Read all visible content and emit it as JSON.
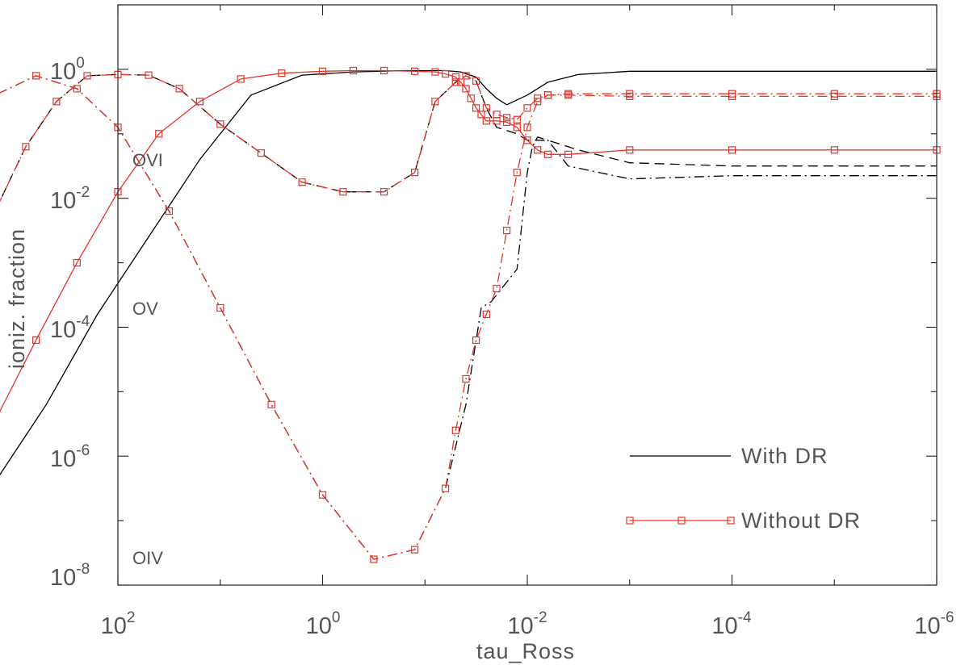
{
  "chart_data": {
    "type": "line",
    "xlabel": "tau_Ross",
    "ylabel": "ioniz. fraction",
    "x_scale": "log",
    "y_scale": "log",
    "xlim": [
      100,
      1e-06
    ],
    "ylim": [
      1e-08,
      10
    ],
    "x_ticks": [
      {
        "base": "10",
        "exp": "2",
        "value": 100
      },
      {
        "base": "10",
        "exp": "0",
        "value": 1
      },
      {
        "base": "10",
        "exp": "-2",
        "value": 0.01
      },
      {
        "base": "10",
        "exp": "-4",
        "value": 0.0001
      },
      {
        "base": "10",
        "exp": "-6",
        "value": 1e-06
      }
    ],
    "y_ticks": [
      {
        "base": "10",
        "exp": "0",
        "value": 1
      },
      {
        "base": "10",
        "exp": "-2",
        "value": 0.01
      },
      {
        "base": "10",
        "exp": "-4",
        "value": 0.0001
      },
      {
        "base": "10",
        "exp": "-6",
        "value": 1e-06
      },
      {
        "base": "10",
        "exp": "-8",
        "value": 1e-08
      }
    ],
    "ion_labels": [
      "OVI",
      "OV",
      "OIV"
    ],
    "legend": [
      {
        "label": "With DR",
        "style": "solid",
        "color": "#000000"
      },
      {
        "label": "Without DR",
        "style": "solid-squares",
        "color": "#e8332a"
      }
    ],
    "series": [
      {
        "name": "OVI With DR",
        "ion": "OVI",
        "case": "With DR",
        "dash": "solid",
        "color": "#000000",
        "x": [
          3.548,
          3.2,
          2.7,
          2.2,
          1.7,
          1.2,
          0.7,
          0.2,
          -0.3,
          -0.8,
          -1.2,
          -1.35,
          -1.5,
          -1.6,
          -1.7,
          -1.8,
          -2.0,
          -2.2,
          -2.5,
          -3.0,
          -4.0,
          -5.0,
          -6.0
        ],
        "y": [
          -7.2,
          -6.4,
          -5.2,
          -3.8,
          -2.6,
          -1.4,
          -0.4,
          -0.09,
          -0.04,
          -0.02,
          -0.02,
          -0.04,
          -0.12,
          -0.3,
          -0.45,
          -0.55,
          -0.4,
          -0.2,
          -0.08,
          -0.03,
          -0.03,
          -0.03,
          -0.03
        ]
      },
      {
        "name": "OVI Without DR",
        "ion": "OVI",
        "case": "Without DR",
        "dash": "solid",
        "color": "#e8332a",
        "markers": true,
        "x": [
          3.548,
          3.2,
          2.8,
          2.4,
          2.0,
          1.6,
          1.2,
          0.8,
          0.4,
          0.0,
          -0.3,
          -0.6,
          -0.9,
          -1.1,
          -1.2,
          -1.3,
          -1.35,
          -1.4,
          -1.45,
          -1.5,
          -1.55,
          -1.6,
          -1.7,
          -1.8,
          -1.9,
          -2.0,
          -2.1,
          -2.2,
          -2.4,
          -3.0,
          -4.0,
          -5.0,
          -6.0
        ],
        "y": [
          -7.2,
          -5.45,
          -4.2,
          -3.0,
          -1.9,
          -1.0,
          -0.5,
          -0.15,
          -0.06,
          -0.03,
          -0.02,
          -0.02,
          -0.03,
          -0.04,
          -0.07,
          -0.12,
          -0.2,
          -0.3,
          -0.45,
          -0.6,
          -0.7,
          -0.8,
          -0.8,
          -0.82,
          -0.9,
          -1.1,
          -1.25,
          -1.32,
          -1.32,
          -1.25,
          -1.25,
          -1.25,
          -1.25
        ]
      },
      {
        "name": "OV With DR",
        "ion": "OV",
        "case": "With DR",
        "dash": "dashed",
        "color": "#000000",
        "x": [
          3.548,
          3.2,
          2.9,
          2.6,
          2.3,
          2.0,
          1.7,
          1.4,
          1.0,
          0.6,
          0.2,
          -0.2,
          -0.6,
          -0.9,
          -1.1,
          -1.3,
          -1.4,
          -1.5,
          -1.6,
          -1.7,
          -1.8,
          -1.9,
          -2.0,
          -2.2,
          -2.5,
          -3.0,
          -4.0,
          -5.0,
          -6.0
        ],
        "y": [
          -3.5,
          -2.2,
          -1.2,
          -0.5,
          -0.1,
          -0.08,
          -0.09,
          -0.3,
          -0.85,
          -1.3,
          -1.75,
          -1.9,
          -1.9,
          -1.6,
          -0.5,
          -0.2,
          -0.1,
          -0.18,
          -0.6,
          -0.9,
          -0.95,
          -1.0,
          -1.1,
          -1.1,
          -1.25,
          -1.45,
          -1.5,
          -1.5,
          -1.5
        ]
      },
      {
        "name": "OV Without DR",
        "ion": "OV",
        "case": "Without DR",
        "dash": "dashdot",
        "color": "#e8332a",
        "markers": true,
        "x": [
          3.548,
          3.2,
          2.9,
          2.6,
          2.3,
          2.0,
          1.7,
          1.4,
          1.0,
          0.6,
          0.2,
          -0.2,
          -0.6,
          -0.9,
          -1.1,
          -1.3,
          -1.4,
          -1.5,
          -1.6,
          -1.7,
          -1.8,
          -1.9,
          -2.0,
          -2.1,
          -2.2,
          -2.4,
          -3.0,
          -4.0,
          -5.0,
          -6.0
        ],
        "y": [
          -3.5,
          -2.2,
          -1.2,
          -0.5,
          -0.1,
          -0.08,
          -0.09,
          -0.3,
          -0.85,
          -1.3,
          -1.75,
          -1.9,
          -1.9,
          -1.6,
          -0.5,
          -0.2,
          -0.1,
          -0.18,
          -0.6,
          -0.7,
          -0.75,
          -0.78,
          -0.6,
          -0.45,
          -0.4,
          -0.4,
          -0.42,
          -0.42,
          -0.42,
          -0.42
        ]
      },
      {
        "name": "OIV With DR",
        "ion": "OIV",
        "case": "With DR",
        "dash": "dashdot",
        "color": "#000000",
        "x": [
          3.548,
          3.2,
          2.8,
          2.4,
          2.0,
          1.5,
          1.0,
          0.5,
          0.0,
          -0.5,
          -0.9,
          -1.2,
          -1.4,
          -1.55,
          -1.65,
          -1.8,
          -1.9,
          -2.0,
          -2.05,
          -2.1,
          -2.2,
          -2.4,
          -3.0,
          -4.0,
          -5.0,
          -6.0
        ],
        "y": [
          -1.05,
          -0.4,
          -0.1,
          -0.3,
          -0.9,
          -2.2,
          -3.7,
          -5.2,
          -6.6,
          -7.6,
          -7.45,
          -6.5,
          -5.2,
          -3.7,
          -3.6,
          -3.3,
          -3.1,
          -1.6,
          -1.2,
          -1.05,
          -1.1,
          -1.5,
          -1.7,
          -1.65,
          -1.65,
          -1.65
        ]
      },
      {
        "name": "OIV Without DR",
        "ion": "OIV",
        "case": "Without DR",
        "dash": "dashdot",
        "color": "#e8332a",
        "markers": true,
        "x": [
          3.548,
          3.2,
          2.8,
          2.4,
          2.0,
          1.5,
          1.0,
          0.5,
          0.0,
          -0.5,
          -0.9,
          -1.2,
          -1.3,
          -1.4,
          -1.5,
          -1.6,
          -1.7,
          -1.8,
          -1.9,
          -2.0,
          -2.1,
          -2.2,
          -2.4,
          -3.0,
          -4.0,
          -5.0,
          -6.0
        ],
        "y": [
          -1.05,
          -0.4,
          -0.1,
          -0.3,
          -0.9,
          -2.2,
          -3.7,
          -5.2,
          -6.6,
          -7.6,
          -7.45,
          -6.5,
          -5.6,
          -4.8,
          -4.2,
          -3.8,
          -3.4,
          -2.5,
          -1.6,
          -0.9,
          -0.5,
          -0.4,
          -0.38,
          -0.38,
          -0.38,
          -0.38,
          -0.38
        ]
      }
    ]
  }
}
